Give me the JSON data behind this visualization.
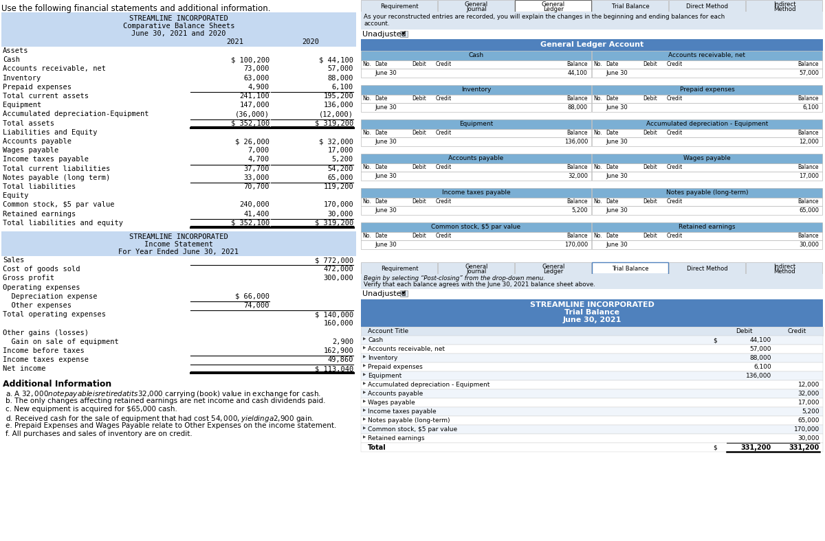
{
  "title_instruction": "Use the following financial statements and additional information.",
  "bs_title1": "STREAMLINE INCORPORATED",
  "bs_title2": "Comparative Balance Sheets",
  "bs_title3": "June 30, 2021 and 2020",
  "bs_col2021": "2021",
  "bs_col2020": "2020",
  "bs_rows": [
    [
      "Assets",
      "",
      ""
    ],
    [
      "Cash",
      "$ 100,200",
      "$ 44,100"
    ],
    [
      "Accounts receivable, net",
      "73,000",
      "57,000"
    ],
    [
      "Inventory",
      "63,000",
      "88,000"
    ],
    [
      "Prepaid expenses",
      "4,900",
      "6,100"
    ],
    [
      "Total current assets",
      "241,100",
      "195,200"
    ],
    [
      "Equipment",
      "147,000",
      "136,000"
    ],
    [
      "Accumulated depreciation-Equipment",
      "(36,000)",
      "(12,000)"
    ],
    [
      "Total assets",
      "$ 352,100",
      "$ 319,200"
    ],
    [
      "Liabilities and Equity",
      "",
      ""
    ],
    [
      "Accounts payable",
      "$ 26,000",
      "$ 32,000"
    ],
    [
      "Wages payable",
      "7,000",
      "17,000"
    ],
    [
      "Income taxes payable",
      "4,700",
      "5,200"
    ],
    [
      "Total current liabilities",
      "37,700",
      "54,200"
    ],
    [
      "Notes payable (long term)",
      "33,000",
      "65,000"
    ],
    [
      "Total liabilities",
      "70,700",
      "119,200"
    ],
    [
      "Equity",
      "",
      ""
    ],
    [
      "Common stock, $5 par value",
      "240,000",
      "170,000"
    ],
    [
      "Retained earnings",
      "41,400",
      "30,000"
    ],
    [
      "Total liabilities and equity",
      "$ 352,100",
      "$ 319,200"
    ]
  ],
  "is_title1": "STREAMLINE INCORPORATED",
  "is_title2": "Income Statement",
  "is_title3": "For Year Ended June 30, 2021",
  "is_rows": [
    [
      "Sales",
      "",
      "$ 772,000"
    ],
    [
      "Cost of goods sold",
      "",
      "472,000"
    ],
    [
      "Gross profit",
      "",
      "300,000"
    ],
    [
      "Operating expenses",
      "",
      ""
    ],
    [
      "  Depreciation expense",
      "$ 66,000",
      ""
    ],
    [
      "  Other expenses",
      "74,000",
      ""
    ],
    [
      "Total operating expenses",
      "",
      "$ 140,000"
    ],
    [
      "",
      "",
      "160,000"
    ],
    [
      "Other gains (losses)",
      "",
      ""
    ],
    [
      "  Gain on sale of equipment",
      "",
      "2,900"
    ],
    [
      "Income before taxes",
      "",
      "162,900"
    ],
    [
      "Income taxes expense",
      "",
      "49,860"
    ],
    [
      "Net income",
      "",
      "$ 113,040"
    ]
  ],
  "ai_title": "Additional Information",
  "ai_items": [
    "a. A $32,000 note payable is retired at its $32,000 carrying (book) value in exchange for cash.",
    "b. The only changes affecting retained earnings are net income and cash dividends paid.",
    "c. New equipment is acquired for $65,000 cash.",
    "d. Received cash for the sale of equipment that had cost $54,000, yielding a $2,900 gain.",
    "e. Prepaid Expenses and Wages Payable relate to Other Expenses on the income statement.",
    "f. All purchases and sales of inventory are on credit."
  ],
  "tabs": [
    "Requirement",
    "General\nJournal",
    "General\nLedger",
    "Trial Balance",
    "Direct Method",
    "Indirect\nMethod"
  ],
  "tab_selected": "General\nLedger",
  "info_text": "As your reconstructed entries are recorded, you will explain the changes in the beginning and ending balances for each\naccount.",
  "dropdown_label": "Unadjusted",
  "gl_title": "General Ledger Account",
  "gl_accounts": [
    {
      "name": "Cash",
      "date": "June 30",
      "balance": "44,100"
    },
    {
      "name": "Accounts receivable, net",
      "date": "June 30",
      "balance": "57,000"
    },
    {
      "name": "Inventory",
      "date": "June 30",
      "balance": "88,000"
    },
    {
      "name": "Prepaid expenses",
      "date": "June 30",
      "balance": "6,100"
    },
    {
      "name": "Equipment",
      "date": "June 30",
      "balance": "136,000"
    },
    {
      "name": "Accumulated depreciation - Equipment",
      "date": "June 30",
      "balance": "12,000"
    },
    {
      "name": "Accounts payable",
      "date": "June 30",
      "balance": "32,000"
    },
    {
      "name": "Wages payable",
      "date": "June 30",
      "balance": "17,000"
    },
    {
      "name": "Income taxes payable",
      "date": "June 30",
      "balance": "5,200"
    },
    {
      "name": "Notes payable (long-term)",
      "date": "June 30",
      "balance": "65,000"
    },
    {
      "name": "Common stock, $5 par value",
      "date": "June 30",
      "balance": "170,000"
    },
    {
      "name": "Retained earnings",
      "date": "June 30",
      "balance": "30,000"
    }
  ],
  "tabs2": [
    "Requirement",
    "General\nJournal",
    "General\nLedger",
    "Trial Balance",
    "Direct Method",
    "Indirect\nMethod"
  ],
  "tab2_selected": "Trial Balance",
  "tb_title1": "STREAMLINE INCORPORATED",
  "tb_title2": "Trial Balance",
  "tb_title3": "June 30, 2021",
  "tb_rows": [
    [
      "Cash",
      "44,100",
      ""
    ],
    [
      "Accounts receivable, net",
      "57,000",
      ""
    ],
    [
      "Inventory",
      "88,000",
      ""
    ],
    [
      "Prepaid expenses",
      "6,100",
      ""
    ],
    [
      "Equipment",
      "136,000",
      ""
    ],
    [
      "Accumulated depreciation - Equipment",
      "",
      "12,000"
    ],
    [
      "Accounts payable",
      "",
      "32,000"
    ],
    [
      "Wages payable",
      "",
      "17,000"
    ],
    [
      "Income taxes payable",
      "",
      "5,200"
    ],
    [
      "Notes payable (long-term)",
      "",
      "65,000"
    ],
    [
      "Common stock, $5 par value",
      "",
      "170,000"
    ],
    [
      "Retained earnings",
      "",
      "30,000"
    ],
    [
      "Total",
      "331,200",
      "331,200"
    ]
  ],
  "bg_color_header": "#c5d9f1",
  "bg_color_table_header": "#4f81bd",
  "bg_color_tabs": "#dce6f1",
  "bg_color_tab_selected": "#ffffff",
  "bg_color_info": "#dce6f1",
  "bg_color_gl_acct": "#7bafd4",
  "bg_color_main": "#ffffff",
  "text_color_dark": "#000000",
  "text_color_white": "#ffffff"
}
